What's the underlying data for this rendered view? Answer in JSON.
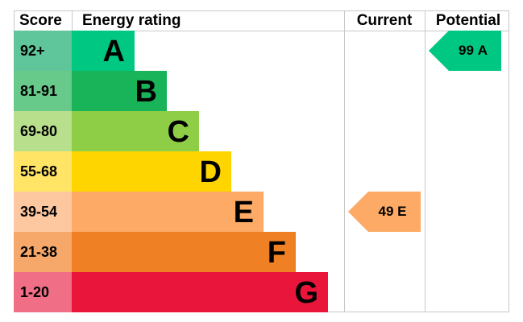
{
  "header": {
    "score": "Score",
    "rating": "Energy rating",
    "current": "Current",
    "potential": "Potential"
  },
  "bands": [
    {
      "score": "92+",
      "letter": "A",
      "color": "#00c781",
      "score_color": "#5fc59a"
    },
    {
      "score": "81-91",
      "letter": "B",
      "color": "#19b459",
      "score_color": "#67c98a"
    },
    {
      "score": "69-80",
      "letter": "C",
      "color": "#8dce46",
      "score_color": "#b8e08c"
    },
    {
      "score": "55-68",
      "letter": "D",
      "color": "#ffd500",
      "score_color": "#ffe466"
    },
    {
      "score": "39-54",
      "letter": "E",
      "color": "#fcaa65",
      "score_color": "#fdc8a0"
    },
    {
      "score": "21-38",
      "letter": "F",
      "color": "#ef8023",
      "score_color": "#f5a86a"
    },
    {
      "score": "1-20",
      "letter": "G",
      "color": "#e9153b",
      "score_color": "#f06e86"
    }
  ],
  "current": {
    "value": 49,
    "letter": "E"
  },
  "potential": {
    "value": 99,
    "letter": "A"
  }
}
